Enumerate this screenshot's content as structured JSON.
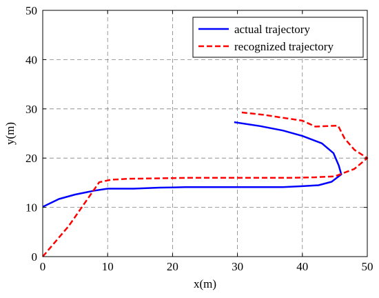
{
  "chart_data": {
    "type": "line",
    "title": "",
    "xlabel": "x(m)",
    "ylabel": "y(m)",
    "xlim": [
      0,
      50
    ],
    "ylim": [
      0,
      50
    ],
    "xticks": [
      0,
      10,
      20,
      30,
      40,
      50
    ],
    "yticks": [
      0,
      10,
      20,
      30,
      40,
      50
    ],
    "grid": true,
    "grid_style": "dashed",
    "legend_position": "top-right",
    "series": [
      {
        "name": "actual trajectory",
        "color": "#0000FF",
        "line_style": "solid",
        "points": [
          [
            0,
            10.1
          ],
          [
            2.5,
            11.7
          ],
          [
            5,
            12.6
          ],
          [
            8,
            13.4
          ],
          [
            10,
            13.8
          ],
          [
            14,
            13.8
          ],
          [
            18,
            14.0
          ],
          [
            22,
            14.1
          ],
          [
            26,
            14.1
          ],
          [
            30,
            14.1
          ],
          [
            34,
            14.1
          ],
          [
            37,
            14.1
          ],
          [
            40,
            14.3
          ],
          [
            42.5,
            14.5
          ],
          [
            44.5,
            15.2
          ],
          [
            46,
            16.7
          ],
          [
            45.6,
            18.5
          ],
          [
            44.8,
            21.0
          ],
          [
            43,
            23.0
          ],
          [
            40,
            24.5
          ],
          [
            37,
            25.6
          ],
          [
            33.5,
            26.5
          ],
          [
            29.5,
            27.3
          ]
        ]
      },
      {
        "name": "recognized trajectory",
        "color": "#FF0000",
        "line_style": "dashed",
        "points": [
          [
            0,
            0
          ],
          [
            4,
            6.2
          ],
          [
            8.7,
            15.1
          ],
          [
            10.5,
            15.6
          ],
          [
            13,
            15.8
          ],
          [
            18,
            15.9
          ],
          [
            22,
            16.0
          ],
          [
            26,
            16.0
          ],
          [
            30,
            16.0
          ],
          [
            34,
            16.0
          ],
          [
            38,
            16.0
          ],
          [
            42,
            16.1
          ],
          [
            45,
            16.3
          ],
          [
            48,
            17.8
          ],
          [
            50,
            20.0
          ],
          [
            48,
            21.7
          ],
          [
            46.5,
            24.0
          ],
          [
            45.5,
            26.6
          ],
          [
            42,
            26.4
          ],
          [
            40,
            27.6
          ],
          [
            37,
            28.2
          ],
          [
            34,
            28.8
          ],
          [
            30.5,
            29.3
          ]
        ]
      }
    ]
  }
}
